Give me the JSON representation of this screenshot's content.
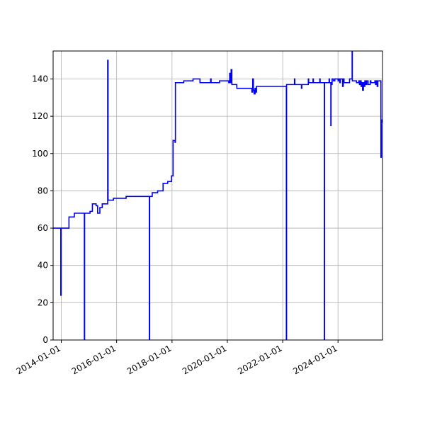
{
  "chart_data": {
    "type": "line",
    "title": "",
    "xlabel": "",
    "ylabel": "",
    "grid": true,
    "x_axis": {
      "type": "date",
      "range": [
        "2013-09-15",
        "2025-08-10"
      ],
      "ticks": [
        "2014-01-01",
        "2016-01-01",
        "2018-01-01",
        "2020-01-01",
        "2022-01-01",
        "2024-01-01"
      ]
    },
    "y_axis": {
      "range": [
        0,
        155
      ],
      "ticks": [
        0,
        20,
        40,
        60,
        80,
        100,
        120,
        140
      ]
    },
    "series": [
      {
        "color": "#0000ff",
        "points": [
          [
            "2013-09-15",
            60
          ],
          [
            "2013-12-20",
            60
          ],
          [
            "2013-12-25",
            24
          ],
          [
            "2013-12-30",
            60
          ],
          [
            "2014-04-10",
            60
          ],
          [
            "2014-04-12",
            66
          ],
          [
            "2014-06-20",
            66
          ],
          [
            "2014-06-22",
            68
          ],
          [
            "2014-10-28",
            68
          ],
          [
            "2014-11-01",
            0
          ],
          [
            "2014-11-05",
            68
          ],
          [
            "2015-01-10",
            68
          ],
          [
            "2015-01-15",
            69
          ],
          [
            "2015-02-10",
            69
          ],
          [
            "2015-02-15",
            73
          ],
          [
            "2015-04-01",
            73
          ],
          [
            "2015-04-05",
            72
          ],
          [
            "2015-04-20",
            72
          ],
          [
            "2015-04-25",
            68
          ],
          [
            "2015-05-20",
            68
          ],
          [
            "2015-05-25",
            71
          ],
          [
            "2015-06-20",
            71
          ],
          [
            "2015-06-25",
            73
          ],
          [
            "2015-09-01",
            73
          ],
          [
            "2015-09-05",
            150
          ],
          [
            "2015-09-10",
            75
          ],
          [
            "2015-11-15",
            75
          ],
          [
            "2015-11-20",
            76
          ],
          [
            "2016-05-01",
            76
          ],
          [
            "2016-05-05",
            77
          ],
          [
            "2017-03-05",
            77
          ],
          [
            "2017-03-08",
            0
          ],
          [
            "2017-03-12",
            77
          ],
          [
            "2017-04-10",
            77
          ],
          [
            "2017-04-15",
            79
          ],
          [
            "2017-06-20",
            79
          ],
          [
            "2017-06-25",
            80
          ],
          [
            "2017-09-01",
            80
          ],
          [
            "2017-09-05",
            84
          ],
          [
            "2017-11-01",
            84
          ],
          [
            "2017-11-05",
            85
          ],
          [
            "2017-12-20",
            85
          ],
          [
            "2017-12-25",
            88
          ],
          [
            "2018-01-10",
            88
          ],
          [
            "2018-01-15",
            107
          ],
          [
            "2018-02-10",
            106
          ],
          [
            "2018-02-15",
            138
          ],
          [
            "2018-06-01",
            138
          ],
          [
            "2018-06-05",
            139
          ],
          [
            "2018-10-01",
            139
          ],
          [
            "2018-10-05",
            140
          ],
          [
            "2019-01-01",
            140
          ],
          [
            "2019-01-05",
            138
          ],
          [
            "2019-05-20",
            138
          ],
          [
            "2019-05-25",
            140
          ],
          [
            "2019-06-01",
            138
          ],
          [
            "2019-09-15",
            138
          ],
          [
            "2019-09-20",
            139
          ],
          [
            "2020-01-15",
            139
          ],
          [
            "2020-01-20",
            138
          ],
          [
            "2020-02-01",
            143
          ],
          [
            "2020-02-10",
            138
          ],
          [
            "2020-02-20",
            145
          ],
          [
            "2020-03-01",
            137
          ],
          [
            "2020-05-01",
            137
          ],
          [
            "2020-05-05",
            135
          ],
          [
            "2020-11-15",
            135
          ],
          [
            "2020-11-20",
            133
          ],
          [
            "2020-12-01",
            140
          ],
          [
            "2020-12-10",
            134
          ],
          [
            "2020-12-20",
            132
          ],
          [
            "2021-01-01",
            135
          ],
          [
            "2021-01-10",
            133
          ],
          [
            "2021-01-20",
            136
          ],
          [
            "2022-02-15",
            136
          ],
          [
            "2022-02-18",
            0
          ],
          [
            "2022-02-21",
            137
          ],
          [
            "2022-06-01",
            137
          ],
          [
            "2022-06-05",
            140
          ],
          [
            "2022-06-10",
            137
          ],
          [
            "2022-09-01",
            137
          ],
          [
            "2022-09-05",
            135
          ],
          [
            "2022-09-10",
            137
          ],
          [
            "2022-12-01",
            137
          ],
          [
            "2022-12-05",
            140
          ],
          [
            "2022-12-10",
            138
          ],
          [
            "2023-02-01",
            138
          ],
          [
            "2023-02-05",
            140
          ],
          [
            "2023-02-10",
            138
          ],
          [
            "2023-05-01",
            138
          ],
          [
            "2023-05-05",
            140
          ],
          [
            "2023-05-10",
            138
          ],
          [
            "2023-07-01",
            138
          ],
          [
            "2023-07-04",
            0
          ],
          [
            "2023-07-07",
            138
          ],
          [
            "2023-09-01",
            138
          ],
          [
            "2023-09-05",
            140
          ],
          [
            "2023-09-10",
            138
          ],
          [
            "2023-09-25",
            138
          ],
          [
            "2023-09-28",
            115
          ],
          [
            "2023-10-01",
            138
          ],
          [
            "2023-10-10",
            137
          ],
          [
            "2023-10-15",
            140
          ],
          [
            "2023-11-01",
            139
          ],
          [
            "2023-11-20",
            140
          ],
          [
            "2024-01-01",
            139
          ],
          [
            "2024-01-10",
            140
          ],
          [
            "2024-01-25",
            138
          ],
          [
            "2024-02-01",
            140
          ],
          [
            "2024-03-01",
            136
          ],
          [
            "2024-03-10",
            140
          ],
          [
            "2024-03-20",
            138
          ],
          [
            "2024-06-01",
            140
          ],
          [
            "2024-07-01",
            140
          ],
          [
            "2024-07-05",
            155
          ],
          [
            "2024-07-08",
            139
          ],
          [
            "2024-08-01",
            139
          ],
          [
            "2024-09-01",
            138
          ],
          [
            "2024-10-01",
            139
          ],
          [
            "2024-10-10",
            137
          ],
          [
            "2024-10-20",
            139
          ],
          [
            "2024-11-01",
            136
          ],
          [
            "2024-11-10",
            138
          ],
          [
            "2024-11-20",
            134
          ],
          [
            "2024-12-01",
            138
          ],
          [
            "2024-12-10",
            136
          ],
          [
            "2024-12-20",
            139
          ],
          [
            "2025-01-01",
            137
          ],
          [
            "2025-01-15",
            139
          ],
          [
            "2025-02-01",
            137
          ],
          [
            "2025-03-01",
            139
          ],
          [
            "2025-03-10",
            138
          ],
          [
            "2025-05-01",
            139
          ],
          [
            "2025-05-10",
            137
          ],
          [
            "2025-05-20",
            139
          ],
          [
            "2025-06-01",
            136
          ],
          [
            "2025-06-10",
            139
          ],
          [
            "2025-07-15",
            139
          ],
          [
            "2025-07-20",
            98
          ],
          [
            "2025-07-25",
            118
          ],
          [
            "2025-08-01",
            117
          ],
          [
            "2025-08-10",
            118
          ]
        ]
      }
    ]
  }
}
